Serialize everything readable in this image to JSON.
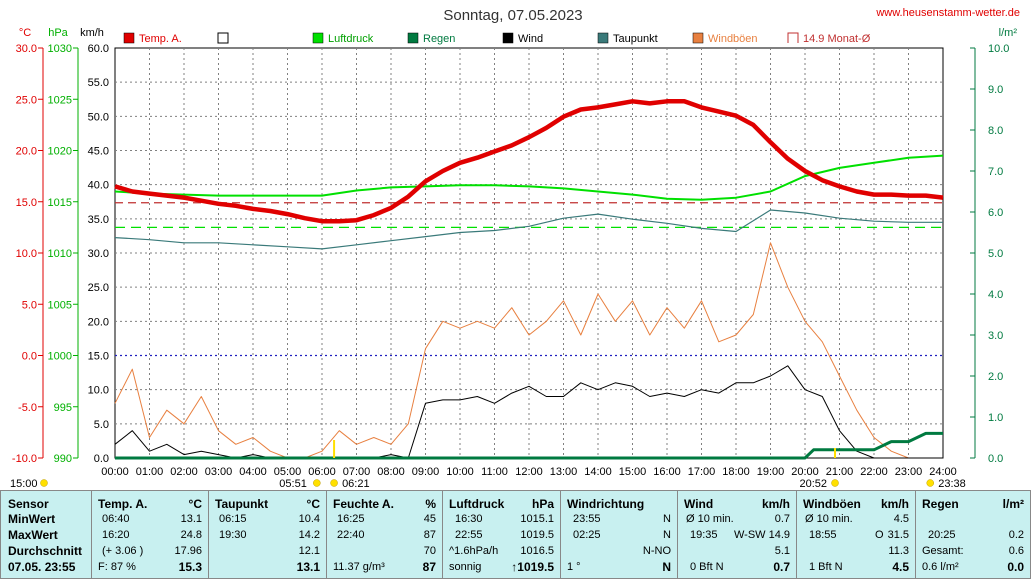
{
  "header": {
    "title": "Sonntag, 07.05.2023",
    "site": "www.heusenstamm-wetter.de",
    "unit_temp": "°C",
    "unit_hpa": "hPa",
    "unit_kmh": "km/h",
    "unit_rain": "l/m²"
  },
  "legend": [
    {
      "label": "Temp. A.",
      "color": "#e00000",
      "marker": "filled"
    },
    {
      "label": "",
      "color": "#000000",
      "marker": "empty"
    },
    {
      "label": "Luftdruck",
      "color": "#00e000",
      "marker": "filled"
    },
    {
      "label": "Regen",
      "color": "#007a40",
      "marker": "filled"
    },
    {
      "label": "Wind",
      "color": "#000000",
      "marker": "filled"
    },
    {
      "label": "Taupunkt",
      "color": "#3a7a7a",
      "marker": "filled"
    },
    {
      "label": "Windböen",
      "color": "#e88040",
      "marker": "filled"
    },
    {
      "label": "14.9 Monat-Ø",
      "color": "#c03030",
      "marker": "bracket"
    }
  ],
  "colors": {
    "temp": "#e00000",
    "pressure": "#00e000",
    "rain": "#007a40",
    "wind": "#000000",
    "dew": "#3a7a7a",
    "gust": "#e88040",
    "grid": "#808080",
    "axis_left_temp": "#e00000",
    "axis_left_hpa": "#00b000",
    "axis_right": "#007a40",
    "stats_bg": "#c8f0f0"
  },
  "chart_data": {
    "type": "line",
    "x_tick_labels": [
      "00:00",
      "01:00",
      "02:00",
      "03:00",
      "04:00",
      "05:00",
      "06:00",
      "07:00",
      "08:00",
      "09:00",
      "10:00",
      "11:00",
      "12:00",
      "13:00",
      "14:00",
      "15:00",
      "16:00",
      "17:00",
      "18:00",
      "19:00",
      "20:00",
      "21:00",
      "22:00",
      "23:00",
      "24:00"
    ],
    "x_range_hours": [
      0,
      24
    ],
    "axes": {
      "temp": {
        "ticks": [
          "30.0",
          "25.0",
          "20.0",
          "15.0",
          "10.0",
          "5.0",
          "0.0",
          "-5.0",
          "-10.0"
        ],
        "range": [
          -10,
          30
        ]
      },
      "hpa": {
        "ticks": [
          "1030",
          "1025",
          "1020",
          "1015",
          "1010",
          "1005",
          "1000",
          "995",
          "990"
        ],
        "range": [
          990,
          1030
        ]
      },
      "kmh": {
        "ticks": [
          "60.0",
          "55.0",
          "50.0",
          "45.0",
          "40.0",
          "35.0",
          "30.0",
          "25.0",
          "20.0",
          "15.0",
          "10.0",
          "5.0",
          "0.0"
        ],
        "range": [
          0,
          60
        ]
      },
      "rain": {
        "ticks": [
          "10.0",
          "9.0",
          "8.0",
          "7.0",
          "6.0",
          "5.0",
          "4.0",
          "3.0",
          "2.0",
          "1.0",
          "0.0"
        ],
        "range": [
          0,
          10
        ]
      }
    },
    "reference_lines": {
      "month_avg_temp": 14.9,
      "pressure_ref_hpa": 1012.5,
      "freezing_temp": 0.0
    },
    "annotations": {
      "sun_start": "15:00",
      "sunrise_civil": "05:51",
      "sunrise": "06:21",
      "sunset": "20:52",
      "sunset_civil": "23:38"
    },
    "temp_series": {
      "name": "Temp. A.",
      "x": [
        0,
        0.5,
        1,
        1.5,
        2,
        2.5,
        3,
        3.5,
        4,
        4.5,
        5,
        5.5,
        6,
        6.5,
        7,
        7.5,
        8,
        8.5,
        9,
        9.5,
        10,
        10.5,
        11,
        11.5,
        12,
        12.5,
        13,
        13.5,
        14,
        14.5,
        15,
        15.5,
        16,
        16.5,
        17,
        17.5,
        18,
        18.5,
        19,
        19.5,
        20,
        20.5,
        21,
        21.5,
        22,
        22.5,
        23,
        23.5,
        24
      ],
      "y": [
        16.5,
        16.0,
        15.8,
        15.6,
        15.4,
        15.1,
        14.8,
        14.6,
        14.3,
        14.1,
        13.8,
        13.4,
        13.1,
        13.1,
        13.2,
        13.7,
        14.4,
        15.5,
        17.0,
        18.0,
        18.8,
        19.3,
        19.9,
        20.5,
        21.3,
        22.2,
        23.3,
        24.0,
        24.2,
        24.5,
        24.8,
        24.6,
        24.8,
        24.8,
        24.2,
        23.8,
        23.4,
        22.5,
        20.8,
        19.2,
        18.0,
        17.1,
        16.5,
        16.0,
        15.7,
        15.7,
        15.6,
        15.6,
        15.4
      ]
    },
    "dew_series": {
      "name": "Taupunkt",
      "x": [
        0,
        1,
        2,
        3,
        4,
        5,
        6,
        7,
        8,
        9,
        10,
        11,
        12,
        13,
        14,
        15,
        16,
        17,
        18,
        19,
        20,
        21,
        22,
        23,
        24
      ],
      "y": [
        11.5,
        11.3,
        11.0,
        11.0,
        10.8,
        10.6,
        10.4,
        10.8,
        11.2,
        11.6,
        12.0,
        12.2,
        12.6,
        13.4,
        13.8,
        13.3,
        12.9,
        12.4,
        12.1,
        14.2,
        13.9,
        13.4,
        13.1,
        13.0,
        13.0
      ]
    },
    "pressure_series": {
      "name": "Luftdruck",
      "x": [
        0,
        1,
        2,
        3,
        4,
        5,
        6,
        7,
        8,
        9,
        10,
        11,
        12,
        13,
        14,
        15,
        16,
        17,
        18,
        19,
        20,
        21,
        22,
        23,
        24
      ],
      "y": [
        1016.0,
        1015.8,
        1015.7,
        1015.6,
        1015.6,
        1015.6,
        1015.6,
        1016.1,
        1016.4,
        1016.5,
        1016.6,
        1016.6,
        1016.5,
        1016.3,
        1016.0,
        1015.7,
        1015.3,
        1015.2,
        1015.4,
        1016.0,
        1017.5,
        1018.3,
        1018.8,
        1019.3,
        1019.5
      ]
    },
    "wind_series": {
      "name": "Wind",
      "x": [
        0,
        0.5,
        1,
        1.5,
        2,
        2.5,
        3,
        3.5,
        4,
        4.5,
        5,
        5.5,
        6,
        6.5,
        7,
        7.5,
        8,
        8.5,
        9,
        9.5,
        10,
        10.5,
        11,
        11.5,
        12,
        12.5,
        13,
        13.5,
        14,
        14.5,
        15,
        15.5,
        16,
        16.5,
        17,
        17.5,
        18,
        18.5,
        19,
        19.5,
        20,
        20.5,
        21,
        21.5,
        22,
        22.5,
        23,
        23.5,
        24
      ],
      "y": [
        2.0,
        4.0,
        1.0,
        2.0,
        0.5,
        1.0,
        0.5,
        0,
        0.5,
        0,
        0,
        0,
        0,
        0,
        0,
        0,
        0.5,
        0,
        8.0,
        8.5,
        8.5,
        9.0,
        8.0,
        9.5,
        10.5,
        9.0,
        9.0,
        11.0,
        10.0,
        11.0,
        10.5,
        9.0,
        9.5,
        9.0,
        10.0,
        9.5,
        11.0,
        11.0,
        12.0,
        13.5,
        10.0,
        9.0,
        4.0,
        1.0,
        0,
        0,
        0,
        0,
        0
      ]
    },
    "gust_series": {
      "name": "Windböen",
      "x": [
        0,
        0.5,
        1,
        1.5,
        2,
        2.5,
        3,
        3.5,
        4,
        4.5,
        5,
        5.5,
        6,
        6.5,
        7,
        7.5,
        8,
        8.5,
        9,
        9.5,
        10,
        10.5,
        11,
        11.5,
        12,
        12.5,
        13,
        13.5,
        14,
        14.5,
        15,
        15.5,
        16,
        16.5,
        17,
        17.5,
        18,
        18.5,
        19,
        19.5,
        20,
        20.5,
        21,
        21.5,
        22,
        22.5,
        23,
        23.5,
        24
      ],
      "y": [
        8.0,
        13.0,
        3.0,
        7.0,
        5.0,
        9.0,
        4.0,
        2.0,
        3.0,
        1.0,
        0,
        0,
        1.0,
        4.0,
        2.0,
        3.0,
        2.0,
        5.0,
        16.0,
        20.0,
        19.0,
        20.0,
        19.0,
        22.0,
        18.0,
        20.0,
        23.0,
        18.0,
        24.0,
        20.0,
        23.0,
        18.0,
        22.0,
        19.0,
        23.0,
        17.0,
        18.0,
        21.0,
        31.5,
        25.0,
        20.0,
        17.0,
        12.0,
        7.0,
        3.0,
        1.0,
        0,
        0,
        0
      ]
    },
    "rain_series": {
      "name": "Regen",
      "x": [
        0,
        20.0,
        20.25,
        21.0,
        22.0,
        22.5,
        23.0,
        23.5,
        24
      ],
      "y": [
        0,
        0,
        0.2,
        0.2,
        0.2,
        0.4,
        0.4,
        0.6,
        0.6
      ]
    }
  },
  "stats": {
    "sensor": {
      "head": "Sensor",
      "min": "MinWert",
      "max": "MaxWert",
      "avg": "Durchschnitt",
      "date": "07.05. 23:55"
    },
    "temp": {
      "head": "Temp. A.",
      "unit": "°C",
      "min_t": "06:40",
      "min_v": "13.1",
      "max_t": "16:20",
      "max_v": "24.8",
      "avg_d": "(+ 3.06 )",
      "avg_v": "17.96",
      "cur_d": "F: 87 %",
      "cur_v": "15.3"
    },
    "dew": {
      "head": "Taupunkt",
      "unit": "°C",
      "min_t": "06:15",
      "min_v": "10.4",
      "max_t": "19:30",
      "max_v": "14.2",
      "avg_v": "12.1",
      "cur_v": "13.1"
    },
    "hum": {
      "head": "Feuchte A.",
      "unit": "%",
      "min_t": "16:25",
      "min_v": "45",
      "max_t": "22:40",
      "max_v": "87",
      "avg_v": "70",
      "cur_d": "11.37 g/m³",
      "cur_v": "87"
    },
    "press": {
      "head": "Luftdruck",
      "unit": "hPa",
      "min_t": "16:30",
      "min_v": "1015.1",
      "max_t": "22:55",
      "max_v": "1019.5",
      "avg_d": "^1.6hPa/h",
      "avg_v": "1016.5",
      "cur_d": "sonnig",
      "cur_v": "↑1019.5"
    },
    "wdir": {
      "head": "Windrichtung",
      "min_t": "23:55",
      "min_v": "N",
      "max_t": "02:25",
      "max_v": "N",
      "avg_v": "N-NO",
      "cur_d": "1 °",
      "cur_v": "N"
    },
    "wind": {
      "head": "Wind",
      "unit": "km/h",
      "min_t": "Ø 10 min.",
      "min_v": "0.7",
      "max_t": "19:35",
      "max_m": "W-SW",
      "max_v": "14.9",
      "avg_v": "5.1",
      "cur_d": "0 Bft N",
      "cur_v": "0.7"
    },
    "gust": {
      "head": "Windböen",
      "unit": "km/h",
      "min_t": "Ø 10 min.",
      "min_v": "4.5",
      "max_t": "18:55",
      "max_m": "O",
      "max_v": "31.5",
      "avg_v": "11.3",
      "cur_d": "1 Bft N",
      "cur_v": "4.5"
    },
    "rain": {
      "head": "Regen",
      "unit": "l/m²",
      "max_t": "20:25",
      "max_v": "0.2",
      "avg_t": "Gesamt:",
      "avg_v": "0.6",
      "cur_d": "0.6 l/m²",
      "cur_v": "0.0"
    }
  }
}
